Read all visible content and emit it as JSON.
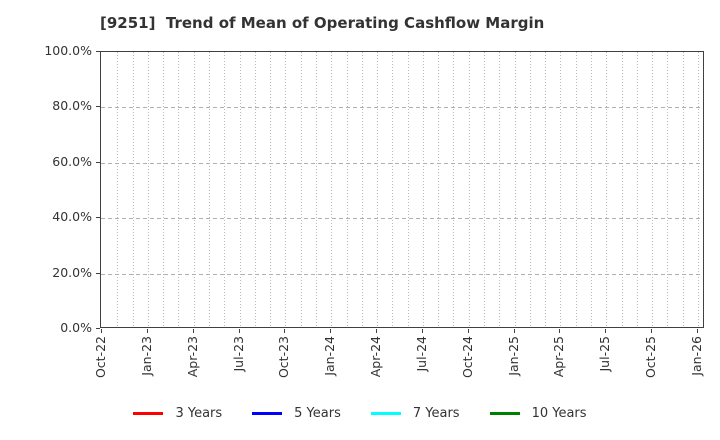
{
  "figure": {
    "background": "#ffffff",
    "text_color": "#333333",
    "axis_color": "#404040",
    "grid_color": "#b8b8b8"
  },
  "chart_data": {
    "type": "line",
    "title": "[9251]  Trend of Mean of Operating Cashflow Margin",
    "xlabel": "",
    "ylabel": "",
    "ylim": [
      0,
      100
    ],
    "grid": true,
    "legend_position": "bottom",
    "x_tick_labels": [
      "Oct-22",
      "Jan-23",
      "Apr-23",
      "Jul-23",
      "Oct-23",
      "Jan-24",
      "Apr-24",
      "Jul-24",
      "Oct-24",
      "Jan-25",
      "Apr-25",
      "Jul-25",
      "Oct-25",
      "Jan-26"
    ],
    "minor_x_divisions_per_major": 3,
    "y_ticks": {
      "values": [
        100,
        80,
        60,
        40,
        20,
        0
      ],
      "labels": [
        "100.0%",
        "80.0%",
        "60.0%",
        "40.0%",
        "20.0%",
        "0.0%"
      ]
    },
    "series": [
      {
        "name": "3 Years",
        "color": "#ff0000",
        "values": []
      },
      {
        "name": "5 Years",
        "color": "#0000ff",
        "values": []
      },
      {
        "name": "7 Years",
        "color": "#00ffff",
        "values": []
      },
      {
        "name": "10 Years",
        "color": "#008000",
        "values": []
      }
    ]
  }
}
